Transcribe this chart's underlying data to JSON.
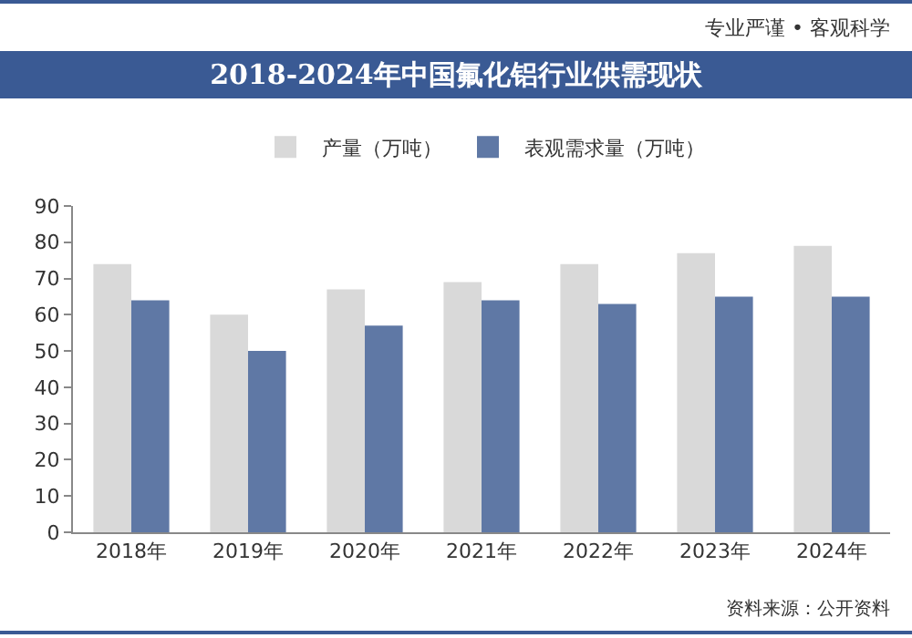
{
  "chart_data": {
    "type": "bar",
    "title": "2018-2024年中国氟化铝行业供需现状",
    "annotations": [
      "专业严谨 • 客观科学",
      "资料来源：公开资料"
    ],
    "categories": [
      "2018年",
      "2019年",
      "2020年",
      "2021年",
      "2022年",
      "2023年",
      "2024年"
    ],
    "series": [
      {
        "name": "产量（万吨）",
        "color": "#d9d9d9",
        "values": [
          74,
          60,
          67,
          69,
          74,
          77,
          79
        ]
      },
      {
        "name": "表观需求量（万吨）",
        "color": "#5f78a5",
        "values": [
          64,
          50,
          57,
          64,
          63,
          65,
          65
        ]
      }
    ],
    "ylim": [
      0,
      90
    ],
    "yticks": [
      0,
      10,
      20,
      30,
      40,
      50,
      60,
      70,
      80,
      90
    ],
    "grid": false,
    "legend": "top"
  }
}
